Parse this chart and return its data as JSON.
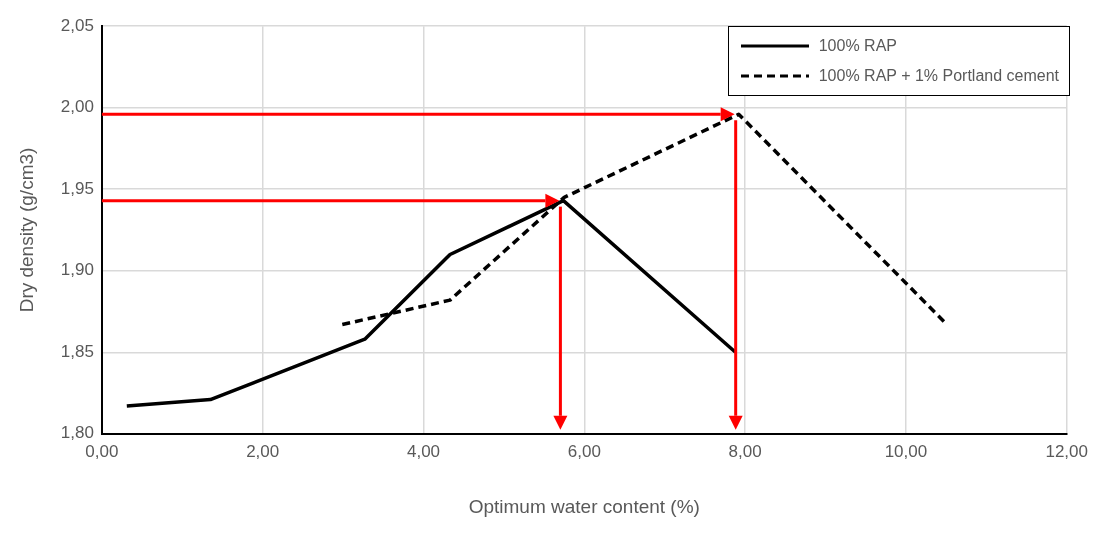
{
  "chart_data": {
    "type": "line",
    "xlabel": "Optimum water content (%)",
    "ylabel": "Dry density (g/cm3)",
    "xlim": [
      0,
      12
    ],
    "ylim": [
      1.8,
      2.05
    ],
    "xticks": [
      {
        "value": 0,
        "label": "0,00"
      },
      {
        "value": 2,
        "label": "2,00"
      },
      {
        "value": 4,
        "label": "4,00"
      },
      {
        "value": 6,
        "label": "6,00"
      },
      {
        "value": 8,
        "label": "8,00"
      },
      {
        "value": 10,
        "label": "10,00"
      },
      {
        "value": 12,
        "label": "12,00"
      }
    ],
    "yticks": [
      {
        "value": 1.8,
        "label": "1,80"
      },
      {
        "value": 1.85,
        "label": "1,85"
      },
      {
        "value": 1.9,
        "label": "1,90"
      },
      {
        "value": 1.95,
        "label": "1,95"
      },
      {
        "value": 2.0,
        "label": "2,00"
      },
      {
        "value": 2.05,
        "label": "2,05"
      }
    ],
    "grid": true,
    "legend": "top right",
    "marker": "none",
    "series": [
      {
        "name": "100% RAP",
        "color": "#000000",
        "line_style": "solid",
        "x": [
          0.31,
          1.35,
          3.27,
          4.33,
          5.74,
          7.88
        ],
        "values": [
          1.817,
          1.821,
          1.858,
          1.91,
          1.943,
          1.85
        ]
      },
      {
        "name": "100% RAP + 1% Portland cement",
        "color": "#000000",
        "line_style": "dashed",
        "x": [
          2.99,
          4.33,
          5.75,
          7.92,
          10.51
        ],
        "values": [
          1.867,
          1.882,
          1.945,
          1.996,
          1.867
        ]
      }
    ]
  }
}
